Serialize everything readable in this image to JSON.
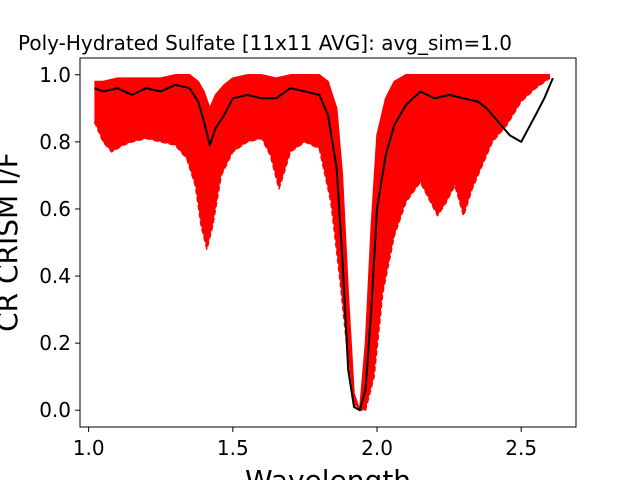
{
  "chart_data": {
    "type": "line",
    "title": "Poly-Hydrated Sulfate [11x11 AVG]: avg_sim=1.0",
    "xlabel": "Wavelength",
    "ylabel": "CR CRISM I/F",
    "xlim": [
      0.97,
      2.69
    ],
    "ylim": [
      -0.05,
      1.05
    ],
    "xticks": [
      1.0,
      1.5,
      2.0,
      2.5
    ],
    "xtick_labels": [
      "1.0",
      "1.5",
      "2.0",
      "2.5"
    ],
    "yticks": [
      0.0,
      0.2,
      0.4,
      0.6,
      0.8,
      1.0
    ],
    "ytick_labels": [
      "0.0",
      "0.2",
      "0.4",
      "0.6",
      "0.8",
      "1.0"
    ],
    "grid": false,
    "colors": {
      "spectra_band": "#ff0000",
      "average": "#000000"
    },
    "series": [
      {
        "role": "average",
        "style": "solid",
        "x": [
          1.02,
          1.05,
          1.1,
          1.15,
          1.2,
          1.25,
          1.3,
          1.35,
          1.38,
          1.4,
          1.42,
          1.44,
          1.47,
          1.5,
          1.55,
          1.6,
          1.65,
          1.7,
          1.75,
          1.8,
          1.83,
          1.86,
          1.88,
          1.9,
          1.92,
          1.94,
          1.96,
          1.98,
          2.0,
          2.03,
          2.06,
          2.1,
          2.15,
          2.2,
          2.25,
          2.3,
          2.35,
          2.38,
          2.42,
          2.46,
          2.5,
          2.55,
          2.58,
          2.61
        ],
        "y": [
          0.96,
          0.95,
          0.96,
          0.94,
          0.96,
          0.95,
          0.97,
          0.96,
          0.92,
          0.86,
          0.79,
          0.84,
          0.88,
          0.93,
          0.94,
          0.93,
          0.93,
          0.96,
          0.95,
          0.94,
          0.88,
          0.72,
          0.45,
          0.12,
          0.01,
          0.0,
          0.06,
          0.3,
          0.6,
          0.76,
          0.85,
          0.91,
          0.95,
          0.93,
          0.94,
          0.93,
          0.92,
          0.9,
          0.86,
          0.82,
          0.8,
          0.88,
          0.93,
          0.99
        ]
      },
      {
        "role": "band-upper",
        "style": "solid",
        "x": [
          1.02,
          1.05,
          1.1,
          1.15,
          1.2,
          1.25,
          1.3,
          1.35,
          1.38,
          1.4,
          1.42,
          1.44,
          1.47,
          1.5,
          1.55,
          1.6,
          1.65,
          1.7,
          1.75,
          1.8,
          1.83,
          1.86,
          1.88,
          1.9,
          1.92,
          1.94,
          1.96,
          1.98,
          2.0,
          2.03,
          2.06,
          2.1,
          2.15,
          2.2,
          2.25,
          2.3,
          2.35,
          2.4,
          2.45,
          2.5,
          2.55,
          2.6
        ],
        "y": [
          0.98,
          0.98,
          0.99,
          0.99,
          0.99,
          0.99,
          1.0,
          1.0,
          0.98,
          0.95,
          0.9,
          0.94,
          0.97,
          0.99,
          1.0,
          1.0,
          0.99,
          1.0,
          1.0,
          1.0,
          0.98,
          0.9,
          0.7,
          0.35,
          0.05,
          0.0,
          0.2,
          0.55,
          0.82,
          0.93,
          0.98,
          1.0,
          1.0,
          1.0,
          1.0,
          1.0,
          1.0,
          1.0,
          1.0,
          1.0,
          1.0,
          1.0
        ]
      },
      {
        "role": "band-lower",
        "style": "dashed",
        "x": [
          1.02,
          1.05,
          1.08,
          1.12,
          1.15,
          1.2,
          1.25,
          1.3,
          1.34,
          1.37,
          1.39,
          1.41,
          1.43,
          1.46,
          1.5,
          1.55,
          1.6,
          1.63,
          1.66,
          1.7,
          1.75,
          1.8,
          1.84,
          1.87,
          1.9,
          1.92,
          1.94,
          1.96,
          1.99,
          2.02,
          2.06,
          2.1,
          2.15,
          2.18,
          2.21,
          2.24,
          2.27,
          2.3,
          2.33,
          2.36,
          2.4,
          2.45,
          2.5,
          2.55,
          2.6
        ],
        "y": [
          0.86,
          0.8,
          0.77,
          0.79,
          0.8,
          0.81,
          0.8,
          0.79,
          0.75,
          0.67,
          0.55,
          0.48,
          0.55,
          0.7,
          0.77,
          0.8,
          0.81,
          0.76,
          0.66,
          0.77,
          0.8,
          0.78,
          0.62,
          0.4,
          0.15,
          0.02,
          0.0,
          0.0,
          0.1,
          0.35,
          0.52,
          0.62,
          0.68,
          0.63,
          0.58,
          0.62,
          0.67,
          0.58,
          0.66,
          0.72,
          0.8,
          0.85,
          0.92,
          0.96,
          0.99
        ]
      }
    ]
  }
}
